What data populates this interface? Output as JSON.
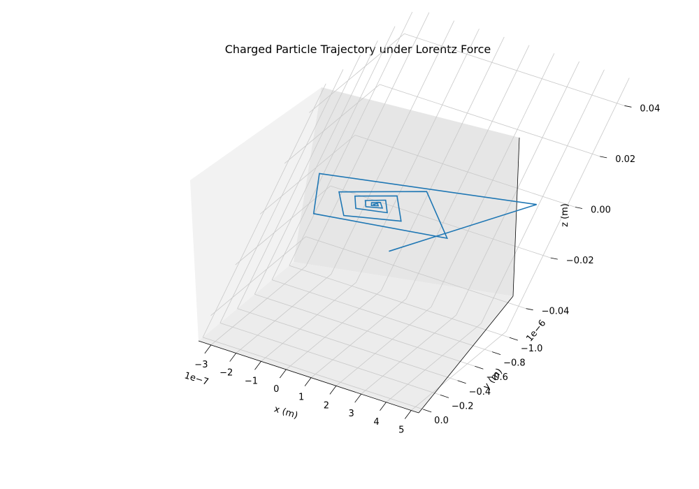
{
  "chart_data": {
    "type": "line3d",
    "title": "Charged Particle Trajectory under Lorentz Force",
    "xlabel": "x (m)",
    "ylabel": "y (m)",
    "zlabel": "z (m)",
    "x_offset": "1e−7",
    "y_offset": "1e−6",
    "x_ticks": [
      "−3",
      "−2",
      "−1",
      "0",
      "1",
      "2",
      "3",
      "4",
      "5"
    ],
    "y_ticks": [
      "0.0",
      "−0.2",
      "−0.4",
      "−0.6",
      "−0.8",
      "−1.0"
    ],
    "z_ticks": [
      "0.04",
      "0.02",
      "0.00",
      "−0.02",
      "−0.04"
    ],
    "xlim": [
      -3.5e-07,
      5.3e-07
    ],
    "ylim": [
      -1.05e-06,
      5e-08
    ],
    "zlim": [
      -0.05,
      0.05
    ],
    "grid": true,
    "series": [
      {
        "color": "#1f77b4",
        "points": [
          [
            1.48e-07,
            0.0,
            0.0
          ],
          [
            4.1e-07,
            -9.5e-07,
            0.0
          ],
          [
            -3.2e-07,
            -5.5e-07,
            0.0
          ],
          [
            -1.98e-07,
            -1.3e-07,
            0.0
          ],
          [
            2.7e-07,
            -3.2e-07,
            0.0
          ],
          [
            5e-08,
            -7.2e-07,
            0.0
          ],
          [
            -2e-07,
            -4.3e-07,
            0.0
          ],
          [
            -1.05e-07,
            -2.1e-07,
            0.0
          ],
          [
            7.9e-08,
            -3.4e-07,
            0.0
          ],
          [
            -2e-08,
            -5.8e-07,
            0.0
          ],
          [
            -1.4e-07,
            -4.4e-07,
            0.0
          ],
          [
            -9.5e-08,
            -3.2e-07,
            0.0
          ],
          [
            1e-08,
            -3.8e-07,
            0.0
          ],
          [
            -3.8e-08,
            -5e-07,
            0.0
          ],
          [
            -9.5e-08,
            -4.3e-07,
            0.0
          ],
          [
            -7.2e-08,
            -3.7e-07,
            0.0
          ],
          [
            -2e-08,
            -4.1e-07,
            0.0
          ],
          [
            -4.5e-08,
            -4.6e-07,
            0.0
          ],
          [
            -7e-08,
            -4.3e-07,
            0.0
          ],
          [
            -6e-08,
            -4e-07,
            0.0
          ],
          [
            -4e-08,
            -4.2e-07,
            0.0
          ],
          [
            -5e-08,
            -4.4e-07,
            0.0
          ],
          [
            -5.8e-08,
            -4.2e-07,
            0.0
          ],
          [
            -5.2e-08,
            -4.15e-07,
            0.0
          ]
        ]
      }
    ]
  }
}
